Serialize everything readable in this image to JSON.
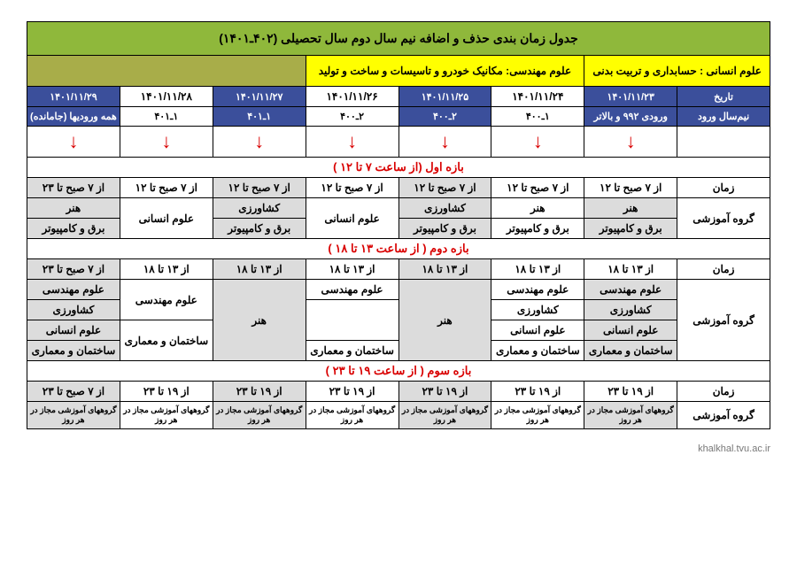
{
  "title": "جدول زمان بندی حذف و اضافه نیم سال دوم سال تحصیلی (۴۰۲ـ۱۴۰۱)",
  "legend": {
    "humanities": "علوم انسانی : حسابداری و تربیت بدنی",
    "engineering": "علوم مهندسی: مکانیک خودرو و تاسیسات و ساخت و تولید"
  },
  "headers": {
    "date": "تاریخ",
    "semester": "نیم‌سال ورود",
    "time": "زمان",
    "group": "گروه آموزشی"
  },
  "dates": [
    "۱۴۰۱/۱۱/۲۳",
    "۱۴۰۱/۱۱/۲۴",
    "۱۴۰۱/۱۱/۲۵",
    "۱۴۰۱/۱۱/۲۶",
    "۱۴۰۱/۱۱/۲۷",
    "۱۴۰۱/۱۱/۲۸",
    "۱۴۰۱/۱۱/۲۹"
  ],
  "semesters": [
    "ورودی ۹۹۲ و بالاتر",
    "۱ـ۴۰۰",
    "۲ـ۴۰۰",
    "۲ـ۴۰۰",
    "۱ـ۴۰۱",
    "۱ـ۴۰۱",
    "همه ورودیها (جامانده)"
  ],
  "arrow": "↓",
  "s1": {
    "title": "بازه اول (از ساعت ۷ تا ۱۲ )",
    "time_a": "از ۷ صبح تا ۱۲",
    "time_b": "از ۷ صبح تا ۲۳",
    "c1r1": "هنر",
    "c1r2": "برق و کامپیوتر",
    "c2r1": "هنر",
    "c2r2": "برق و کامپیوتر",
    "c3r1": "کشاورزی",
    "c3r2": "برق و کامپیوتر",
    "c4": "علوم انسانی",
    "c5r1": "کشاورزی",
    "c5r2": "برق و کامپیوتر",
    "c6": "علوم انسانی",
    "c7r1": "هنر",
    "c7r2": "برق و کامپیوتر"
  },
  "s2": {
    "title": "بازه دوم ( از ساعت ۱۳ تا ۱۸ )",
    "time_a": "از ۱۳ تا ۱۸",
    "time_b": "از ۷ صبح تا ۲۳",
    "c1r1": "علوم مهندسی",
    "c1r2": "کشاورزی",
    "c1r3": "علوم انسانی",
    "c1r4": "ساختمان و معماری",
    "c2r1": "علوم مهندسی",
    "c2r2": "کشاورزی",
    "c2r3": "علوم انسانی",
    "c2r4": "ساختمان و معماری",
    "c3": "هنر",
    "c4r1": "علوم مهندسی",
    "c4r2": "ساختمان و معماری",
    "c5": "هنر",
    "c6r1": "علوم مهندسی",
    "c6r4": "ساختمان و معماری",
    "c7r1": "علوم مهندسی",
    "c7r2": "کشاورزی",
    "c7r3": "علوم انسانی",
    "c7r4": "ساختمان و معماری"
  },
  "s3": {
    "title": "بازه سوم ( از ساعت ۱۹ تا ۲۳ )",
    "time_a": "از ۱۹ تا ۲۳",
    "time_b": "از ۷ صبح تا ۲۳",
    "note": "گروههای آموزشی مجاز در هر روز"
  },
  "footer": "khalkhal.tvu.ac.ir"
}
